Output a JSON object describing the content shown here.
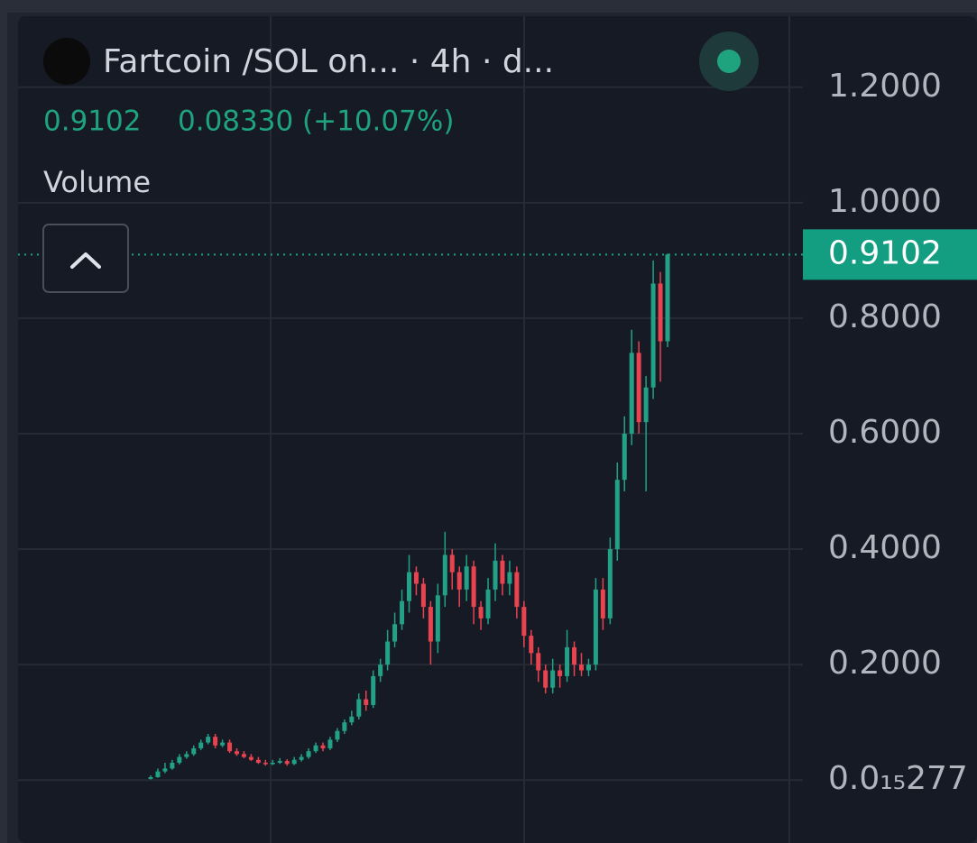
{
  "chart_data": {
    "type": "candlestick",
    "title": "Fartcoin /SOL on... · 4h · d...",
    "last_price": 0.9102,
    "change": "0.08330 (+10.07%)",
    "indicator": "Volume",
    "up_color": "#22a186",
    "down_color": "#e8444f",
    "grid": true,
    "ylim": [
      -0.109,
      1.323
    ],
    "yticks": [
      {
        "value": 2.77e-16,
        "label": "0.0₁₅277"
      },
      {
        "value": 0.2,
        "label": "0.2000"
      },
      {
        "value": 0.4,
        "label": "0.4000"
      },
      {
        "value": 0.6,
        "label": "0.6000"
      },
      {
        "value": 0.8,
        "label": "0.8000"
      },
      {
        "value": 1.0,
        "label": "1.0000"
      },
      {
        "value": 1.2,
        "label": "1.2000"
      }
    ],
    "open": [
      0.002,
      0.005,
      0.015,
      0.02,
      0.03,
      0.04,
      0.045,
      0.055,
      0.065,
      0.075,
      0.06,
      0.065,
      0.05,
      0.045,
      0.04,
      0.035,
      0.03,
      0.028,
      0.03,
      0.033,
      0.028,
      0.035,
      0.04,
      0.05,
      0.06,
      0.055,
      0.07,
      0.085,
      0.1,
      0.11,
      0.14,
      0.13,
      0.18,
      0.2,
      0.24,
      0.27,
      0.31,
      0.36,
      0.34,
      0.3,
      0.24,
      0.32,
      0.39,
      0.36,
      0.33,
      0.37,
      0.3,
      0.28,
      0.33,
      0.38,
      0.34,
      0.36,
      0.3,
      0.25,
      0.22,
      0.19,
      0.16,
      0.19,
      0.18,
      0.23,
      0.2,
      0.19,
      0.2,
      0.33,
      0.28,
      0.4,
      0.52,
      0.6,
      0.74,
      0.62,
      0.68,
      0.86,
      0.76
    ],
    "high": [
      0.008,
      0.02,
      0.03,
      0.035,
      0.045,
      0.05,
      0.06,
      0.07,
      0.08,
      0.08,
      0.07,
      0.07,
      0.055,
      0.05,
      0.045,
      0.04,
      0.035,
      0.035,
      0.038,
      0.036,
      0.04,
      0.045,
      0.055,
      0.065,
      0.065,
      0.075,
      0.09,
      0.105,
      0.12,
      0.15,
      0.155,
      0.19,
      0.21,
      0.26,
      0.29,
      0.33,
      0.39,
      0.37,
      0.35,
      0.31,
      0.34,
      0.43,
      0.4,
      0.37,
      0.39,
      0.38,
      0.31,
      0.35,
      0.41,
      0.39,
      0.38,
      0.37,
      0.31,
      0.26,
      0.23,
      0.2,
      0.21,
      0.2,
      0.26,
      0.24,
      0.22,
      0.21,
      0.35,
      0.35,
      0.42,
      0.55,
      0.63,
      0.78,
      0.76,
      0.7,
      0.9,
      0.88,
      0.912
    ],
    "low": [
      0.001,
      0.004,
      0.012,
      0.018,
      0.027,
      0.037,
      0.042,
      0.052,
      0.062,
      0.055,
      0.057,
      0.047,
      0.042,
      0.038,
      0.033,
      0.028,
      0.025,
      0.026,
      0.028,
      0.025,
      0.026,
      0.032,
      0.037,
      0.047,
      0.05,
      0.052,
      0.066,
      0.08,
      0.095,
      0.105,
      0.12,
      0.125,
      0.17,
      0.19,
      0.23,
      0.26,
      0.29,
      0.32,
      0.28,
      0.2,
      0.22,
      0.3,
      0.33,
      0.3,
      0.31,
      0.27,
      0.26,
      0.27,
      0.31,
      0.32,
      0.32,
      0.28,
      0.23,
      0.2,
      0.17,
      0.15,
      0.15,
      0.16,
      0.17,
      0.18,
      0.18,
      0.18,
      0.19,
      0.26,
      0.27,
      0.38,
      0.5,
      0.58,
      0.6,
      0.5,
      0.66,
      0.69,
      0.75
    ],
    "close": [
      0.005,
      0.015,
      0.02,
      0.03,
      0.04,
      0.045,
      0.055,
      0.065,
      0.075,
      0.06,
      0.065,
      0.05,
      0.045,
      0.04,
      0.035,
      0.03,
      0.028,
      0.03,
      0.033,
      0.028,
      0.035,
      0.04,
      0.05,
      0.06,
      0.055,
      0.07,
      0.085,
      0.1,
      0.11,
      0.14,
      0.13,
      0.18,
      0.2,
      0.24,
      0.27,
      0.31,
      0.36,
      0.34,
      0.3,
      0.24,
      0.32,
      0.39,
      0.36,
      0.33,
      0.37,
      0.3,
      0.28,
      0.33,
      0.38,
      0.34,
      0.36,
      0.3,
      0.25,
      0.22,
      0.19,
      0.16,
      0.19,
      0.18,
      0.23,
      0.2,
      0.19,
      0.2,
      0.33,
      0.28,
      0.4,
      0.52,
      0.6,
      0.74,
      0.62,
      0.68,
      0.86,
      0.76,
      0.9102
    ]
  }
}
